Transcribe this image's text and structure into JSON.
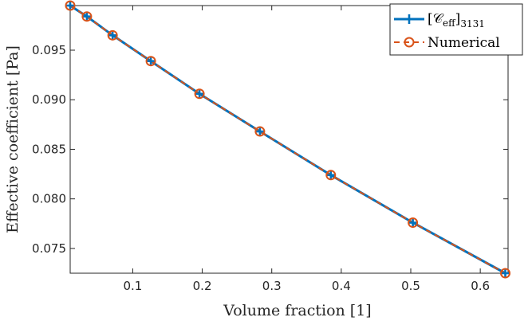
{
  "chart_data": {
    "type": "line",
    "xlabel": "Volume fraction [1]",
    "ylabel": "Effective coefficient [Pa]",
    "xlim": [
      0.01,
      0.64
    ],
    "ylim": [
      0.0725,
      0.0995
    ],
    "xticks": [
      "0.1",
      "0.2",
      "0.3",
      "0.4",
      "0.5",
      "0.6"
    ],
    "yticks": [
      "0.075",
      "0.080",
      "0.085",
      "0.090",
      "0.095"
    ],
    "xtick_values": [
      0.1,
      0.2,
      0.3,
      0.4,
      0.5,
      0.6
    ],
    "ytick_values": [
      0.075,
      0.08,
      0.085,
      0.09,
      0.095
    ],
    "grid": false,
    "legend_position": "top-right",
    "x": [
      0.01,
      0.034,
      0.071,
      0.126,
      0.196,
      0.283,
      0.385,
      0.503,
      0.636
    ],
    "series": [
      {
        "name": "[C_eff]_3131",
        "legend_main": "[𝒞",
        "legend_sub1": "eff",
        "legend_close": "]",
        "legend_sub2": "3131",
        "color": "#0072BD",
        "marker": "plus",
        "line_style": "solid",
        "values": [
          0.0995,
          0.0984,
          0.0965,
          0.0939,
          0.0906,
          0.0868,
          0.0824,
          0.0776,
          0.0725
        ]
      },
      {
        "name": "Numerical",
        "legend_main": "Numerical",
        "color": "#D95319",
        "marker": "circle",
        "line_style": "dashed",
        "values": [
          0.0995,
          0.0984,
          0.0965,
          0.0939,
          0.0906,
          0.0868,
          0.0824,
          0.0776,
          0.0725
        ]
      }
    ]
  }
}
